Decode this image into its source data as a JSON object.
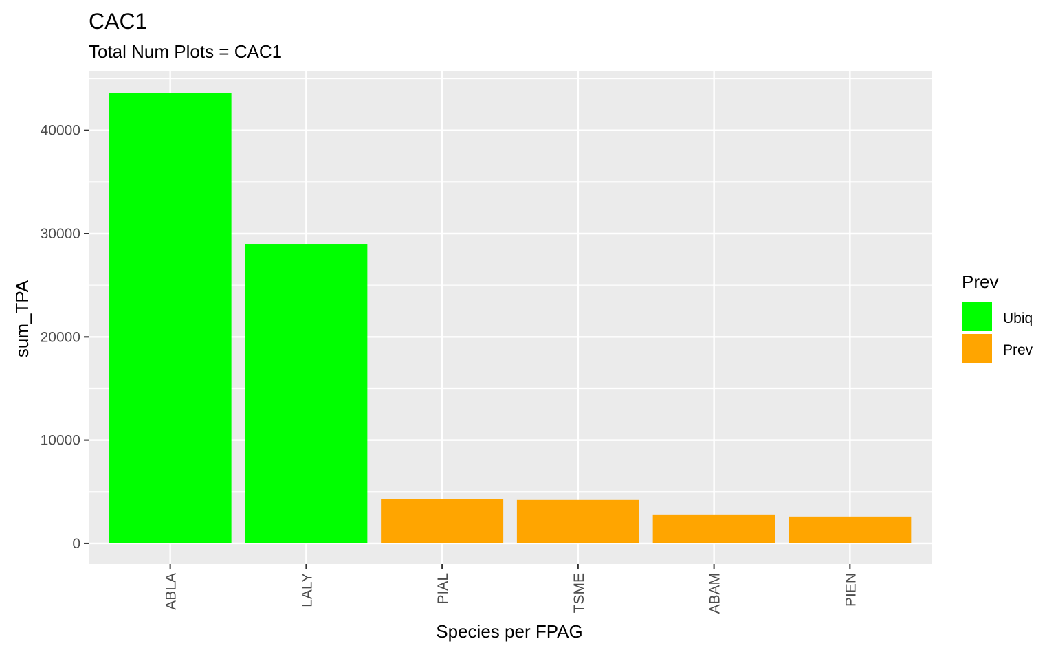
{
  "chart_data": {
    "type": "bar",
    "title": "CAC1",
    "subtitle": "Total Num Plots = CAC1",
    "xlabel": "Species per FPAG",
    "ylabel": "sum_TPA",
    "categories": [
      "ABLA",
      "LALY",
      "PIAL",
      "TSME",
      "ABAM",
      "PIEN"
    ],
    "values": [
      43600,
      29000,
      4300,
      4200,
      2800,
      2600
    ],
    "groups": [
      "Ubiq",
      "Ubiq",
      "Prev",
      "Prev",
      "Prev",
      "Prev"
    ],
    "ylim": [
      -2000,
      45700
    ],
    "yticks": [
      0,
      10000,
      20000,
      30000,
      40000
    ],
    "ytick_labels": [
      "0",
      "10000",
      "20000",
      "30000",
      "40000"
    ],
    "grid": true,
    "legend": {
      "title": "Prev",
      "position": "right",
      "entries": [
        {
          "label": "Ubiq",
          "color": "#00ff00"
        },
        {
          "label": "Prev",
          "color": "#ffa500"
        }
      ]
    }
  },
  "colors": {
    "panel_background": "#ebebeb",
    "grid": "#ffffff",
    "Ubiq": "#00ff00",
    "Prev": "#ffa500"
  }
}
